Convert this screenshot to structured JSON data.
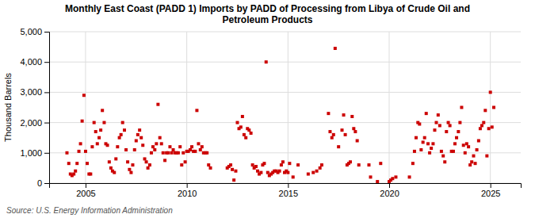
{
  "chart_data": {
    "type": "scatter",
    "title": "Monthly East Coast (PADD 1) Imports by PADD of Processing from Libya of Crude Oil and\nPetroleum Products",
    "ylabel": "Thousand Barrels",
    "source": "Source: U.S. Energy Information Administration",
    "color": "#CC0000",
    "marker": "square",
    "grid": true,
    "xlim": [
      2003.2,
      2026.5
    ],
    "xticks": [
      2005,
      2010,
      2015,
      2020,
      2025
    ],
    "ylim": [
      0,
      5000
    ],
    "yticks": [
      0,
      {
        "value": 1000,
        "label": "1,000"
      },
      {
        "value": 2000,
        "label": "2,000"
      },
      {
        "value": 3000,
        "label": "3,000"
      },
      {
        "value": 4000,
        "label": "4,000"
      },
      {
        "value": 5000,
        "label": "5,000"
      }
    ],
    "x": [
      2004.08,
      2004.17,
      2004.25,
      2004.33,
      2004.42,
      2004.5,
      2004.58,
      2004.67,
      2004.75,
      2004.83,
      2004.92,
      2005.0,
      2005.08,
      2005.17,
      2005.25,
      2005.33,
      2005.42,
      2005.5,
      2005.58,
      2005.67,
      2005.75,
      2005.83,
      2005.92,
      2006.0,
      2006.08,
      2006.17,
      2006.25,
      2006.33,
      2006.42,
      2006.5,
      2006.58,
      2006.67,
      2006.75,
      2006.83,
      2006.92,
      2007.0,
      2007.08,
      2007.17,
      2007.25,
      2007.33,
      2007.42,
      2007.5,
      2007.58,
      2007.67,
      2007.75,
      2007.83,
      2007.92,
      2008.0,
      2008.08,
      2008.17,
      2008.25,
      2008.33,
      2008.42,
      2008.5,
      2008.58,
      2008.67,
      2008.75,
      2008.83,
      2008.92,
      2009.0,
      2009.08,
      2009.17,
      2009.25,
      2009.33,
      2009.42,
      2009.5,
      2009.58,
      2009.67,
      2009.75,
      2009.83,
      2009.92,
      2010.0,
      2010.08,
      2010.17,
      2010.25,
      2010.33,
      2010.42,
      2010.5,
      2010.58,
      2010.67,
      2010.75,
      2010.83,
      2010.92,
      2011.0,
      2011.08,
      2011.17,
      2012.0,
      2012.08,
      2012.17,
      2012.25,
      2012.33,
      2012.42,
      2012.5,
      2012.58,
      2012.67,
      2012.75,
      2012.83,
      2012.92,
      2013.0,
      2013.08,
      2013.17,
      2013.25,
      2013.33,
      2013.42,
      2013.5,
      2013.58,
      2013.67,
      2013.75,
      2013.83,
      2013.92,
      2014.0,
      2014.08,
      2014.17,
      2014.25,
      2014.33,
      2014.42,
      2014.5,
      2014.58,
      2014.67,
      2014.75,
      2014.83,
      2014.92,
      2015.0,
      2015.08,
      2015.25,
      2015.5,
      2016.0,
      2016.25,
      2016.42,
      2016.58,
      2016.67,
      2017.0,
      2017.08,
      2017.17,
      2017.25,
      2017.33,
      2017.5,
      2017.67,
      2017.75,
      2017.83,
      2017.92,
      2018.0,
      2018.08,
      2018.17,
      2018.25,
      2018.33,
      2018.42,
      2018.5,
      2019.0,
      2019.08,
      2019.42,
      2019.58,
      2020.0,
      2020.08,
      2020.17,
      2020.33,
      2021.0,
      2021.17,
      2021.25,
      2021.33,
      2021.42,
      2021.5,
      2021.58,
      2021.67,
      2021.75,
      2021.83,
      2021.92,
      2022.0,
      2022.08,
      2022.17,
      2022.25,
      2022.33,
      2022.42,
      2022.5,
      2022.58,
      2022.67,
      2022.75,
      2022.83,
      2022.92,
      2023.0,
      2023.08,
      2023.17,
      2023.25,
      2023.33,
      2023.42,
      2023.5,
      2023.58,
      2023.67,
      2023.75,
      2023.83,
      2023.92,
      2024.0,
      2024.08,
      2024.17,
      2024.25,
      2024.33,
      2024.42,
      2024.5,
      2024.58,
      2024.67,
      2024.75,
      2024.83,
      2024.92,
      2025.0,
      2025.08,
      2025.17
    ],
    "values": [
      1000,
      650,
      300,
      250,
      300,
      400,
      650,
      1050,
      1300,
      2050,
      2900,
      1050,
      650,
      300,
      300,
      1200,
      2000,
      1700,
      1300,
      1500,
      1750,
      2400,
      2000,
      1300,
      1250,
      700,
      500,
      400,
      350,
      800,
      1200,
      1500,
      1600,
      2000,
      1750,
      1100,
      700,
      450,
      350,
      600,
      1100,
      1400,
      1600,
      1750,
      1500,
      1250,
      800,
      700,
      500,
      600,
      1000,
      1200,
      1100,
      1300,
      2600,
      1500,
      1300,
      1000,
      750,
      1000,
      1000,
      1200,
      1000,
      1100,
      1000,
      1000,
      1000,
      1200,
      600,
      1000,
      700,
      1050,
      1050,
      1100,
      1200,
      1050,
      1050,
      2400,
      1300,
      1100,
      1200,
      1000,
      1000,
      1000,
      600,
      500,
      500,
      550,
      600,
      450,
      100,
      400,
      2000,
      1800,
      1850,
      2200,
      1600,
      1500,
      1800,
      1750,
      1650,
      600,
      500,
      550,
      400,
      300,
      350,
      600,
      650,
      4000,
      350,
      250,
      300,
      350,
      400,
      400,
      350,
      400,
      600,
      700,
      350,
      400,
      350,
      650,
      200,
      600,
      300,
      350,
      400,
      500,
      600,
      2300,
      1700,
      1500,
      1600,
      4450,
      1200,
      1750,
      2250,
      1600,
      600,
      650,
      700,
      2200,
      1800,
      1700,
      1400,
      600,
      600,
      200,
      50,
      650,
      50,
      100,
      150,
      200,
      200,
      650,
      1050,
      1500,
      2000,
      1950,
      1100,
      1350,
      1500,
      2300,
      1300,
      1000,
      1150,
      1300,
      1750,
      2000,
      2250,
      1900,
      1050,
      900,
      700,
      1700,
      2000,
      1900,
      1050,
      1050,
      1300,
      1500,
      1700,
      2000,
      2500,
      1250,
      1000,
      1300,
      1200,
      600,
      700,
      900,
      650,
      1100,
      1400,
      1800,
      1900,
      2000,
      2400,
      900,
      1800,
      3000,
      1850,
      2500
    ]
  }
}
